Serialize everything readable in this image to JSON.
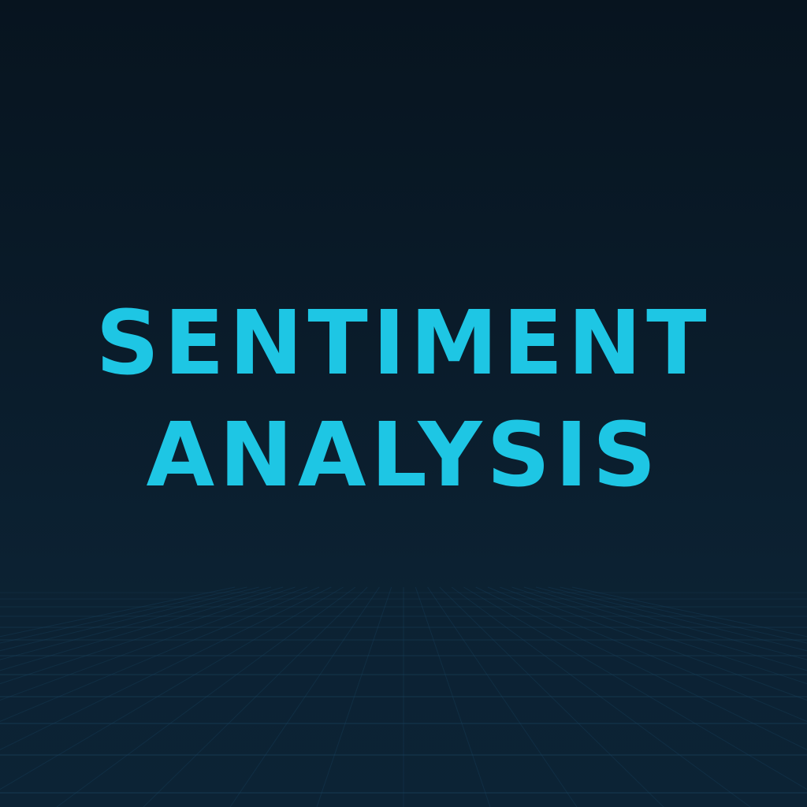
{
  "title": {
    "line1": "SENTIMENT",
    "line2": "ANALYSIS"
  },
  "colors": {
    "title_text": "#1ec6e4",
    "background_top": "#07141f",
    "background_bottom": "#0c2335",
    "grid_line": "#1b4560"
  }
}
